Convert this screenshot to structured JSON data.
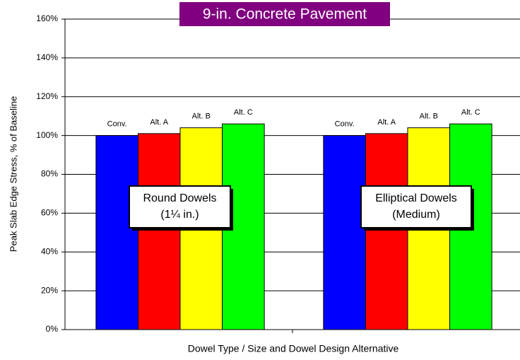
{
  "chart_data": {
    "type": "bar",
    "title": "9-in. Concrete Pavement",
    "x_label": "Dowel Type / Size and Dowel Design Alternative",
    "y_label": "Peak Slab Edge Stress, % of Baseline",
    "categories": [
      null,
      null
    ],
    "series": [
      {
        "name": "Conv.",
        "color": "#0000ff",
        "values": [
          100,
          100
        ]
      },
      {
        "name": "Alt. A",
        "color": "#ff0000",
        "values": [
          101,
          101
        ]
      },
      {
        "name": "Alt. B",
        "color": "#ffff00",
        "values": [
          104,
          104
        ]
      },
      {
        "name": "Alt. C",
        "color": "#00ff00",
        "values": [
          106,
          106
        ]
      }
    ],
    "annotations": [
      [
        "Round Dowels",
        "(1¼ in.)"
      ],
      [
        "Elliptical Dowels",
        "(Medium)"
      ]
    ],
    "ylim": [
      0,
      160
    ],
    "yticks": [
      {
        "value": 0,
        "label": "0%"
      },
      {
        "value": 20,
        "label": "20%"
      },
      {
        "value": 40,
        "label": "40%"
      },
      {
        "value": 60,
        "label": "60%"
      },
      {
        "value": 80,
        "label": "80%"
      },
      {
        "value": 100,
        "label": "100%"
      },
      {
        "value": 120,
        "label": "120%"
      },
      {
        "value": 140,
        "label": "140%"
      },
      {
        "value": 160,
        "label": "160%"
      }
    ],
    "grid": true,
    "title_background": "#800080"
  }
}
